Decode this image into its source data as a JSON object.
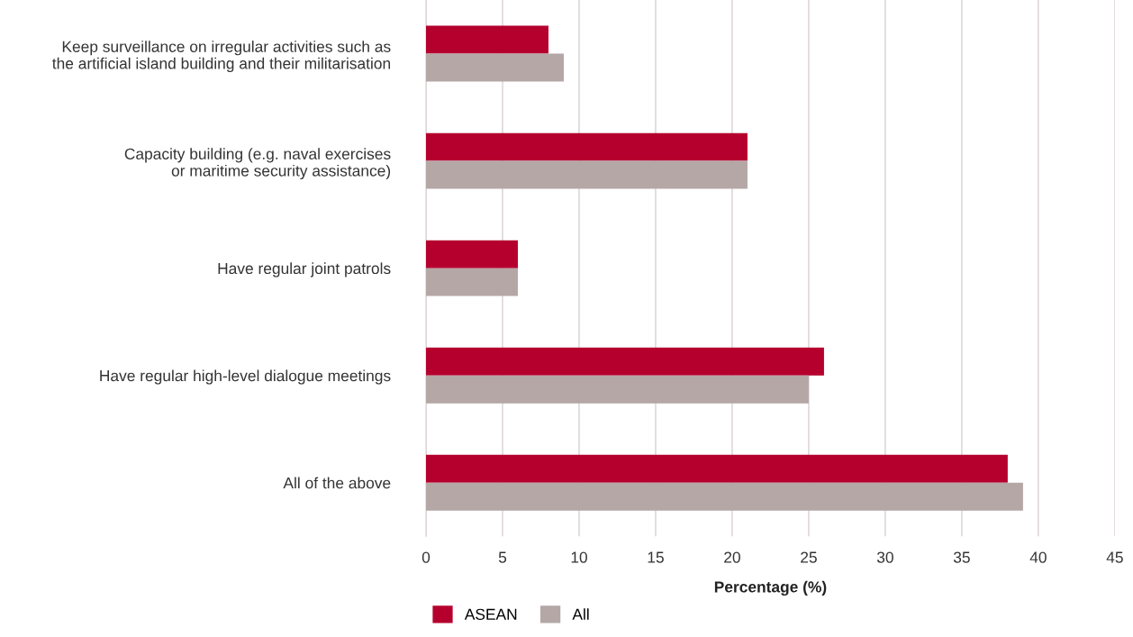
{
  "chart_data": {
    "type": "bar",
    "orientation": "horizontal",
    "xlabel": "Percentage (%)",
    "categories": [
      "Keep surveillance on irregular activities such as\nthe artificial island building and their militarisation",
      "Capacity building (e.g. naval exercises\nor maritime security assistance)",
      "Have regular joint patrols",
      "Have regular high-level dialogue meetings",
      "All of the above"
    ],
    "series": [
      {
        "name": "ASEAN",
        "color": "#b5002e",
        "values": [
          8,
          21,
          6,
          26,
          38
        ]
      },
      {
        "name": "All",
        "color": "#b4a7a6",
        "values": [
          9,
          21,
          6,
          25,
          39
        ]
      }
    ],
    "xlim": [
      0,
      45
    ],
    "xticks": [
      0,
      5,
      10,
      15,
      20,
      25,
      30,
      35,
      40,
      45
    ],
    "grid": "x",
    "legend": "bottom"
  }
}
